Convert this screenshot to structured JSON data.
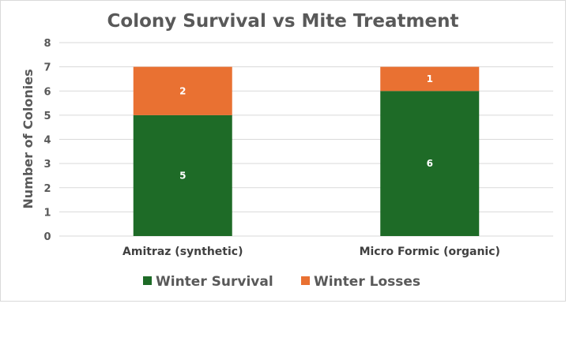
{
  "chart_data": {
    "type": "bar",
    "stacked": true,
    "title": "Colony Survival vs Mite Treatment",
    "xlabel": "",
    "ylabel": "Number of Colonies",
    "categories": [
      "Amitraz (synthetic)",
      "Micro Formic (organic)"
    ],
    "series": [
      {
        "name": "Winter Survival",
        "values": [
          5,
          6
        ],
        "color": "#1e6b27"
      },
      {
        "name": "Winter Losses",
        "values": [
          2,
          1
        ],
        "color": "#e97132"
      }
    ],
    "ylim": [
      0,
      8
    ],
    "yticks": [
      "0",
      "1",
      "2",
      "3",
      "4",
      "5",
      "6",
      "7",
      "8"
    ],
    "grid": true,
    "legend": "bottom"
  }
}
